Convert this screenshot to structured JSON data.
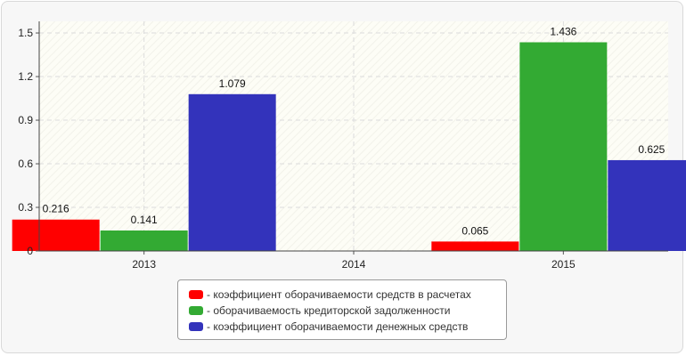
{
  "chart_data": {
    "type": "bar",
    "categories": [
      "2013",
      "2014",
      "2015"
    ],
    "series": [
      {
        "name": "- коэффициент оборачиваемости средств в расчетах",
        "color": "#ff0000",
        "values": [
          0.216,
          null,
          0.065
        ],
        "labels": [
          "0.216",
          "",
          "0.065"
        ]
      },
      {
        "name": "- оборачиваемость кредиторской задолженности",
        "color": "#33aa33",
        "values": [
          0.141,
          null,
          1.436
        ],
        "labels": [
          "0.141",
          "",
          "1.436"
        ]
      },
      {
        "name": "- коэффициент оборачиваемости денежных средств",
        "color": "#3333bb",
        "values": [
          1.079,
          null,
          0.625
        ],
        "labels": [
          "1.079",
          "",
          "0.625"
        ]
      }
    ],
    "yticks": [
      "0",
      "0.3",
      "0.6",
      "0.9",
      "1.2",
      "1.5"
    ],
    "ylim": [
      0,
      1.6
    ],
    "grid": true,
    "legend": "bottom-center"
  }
}
